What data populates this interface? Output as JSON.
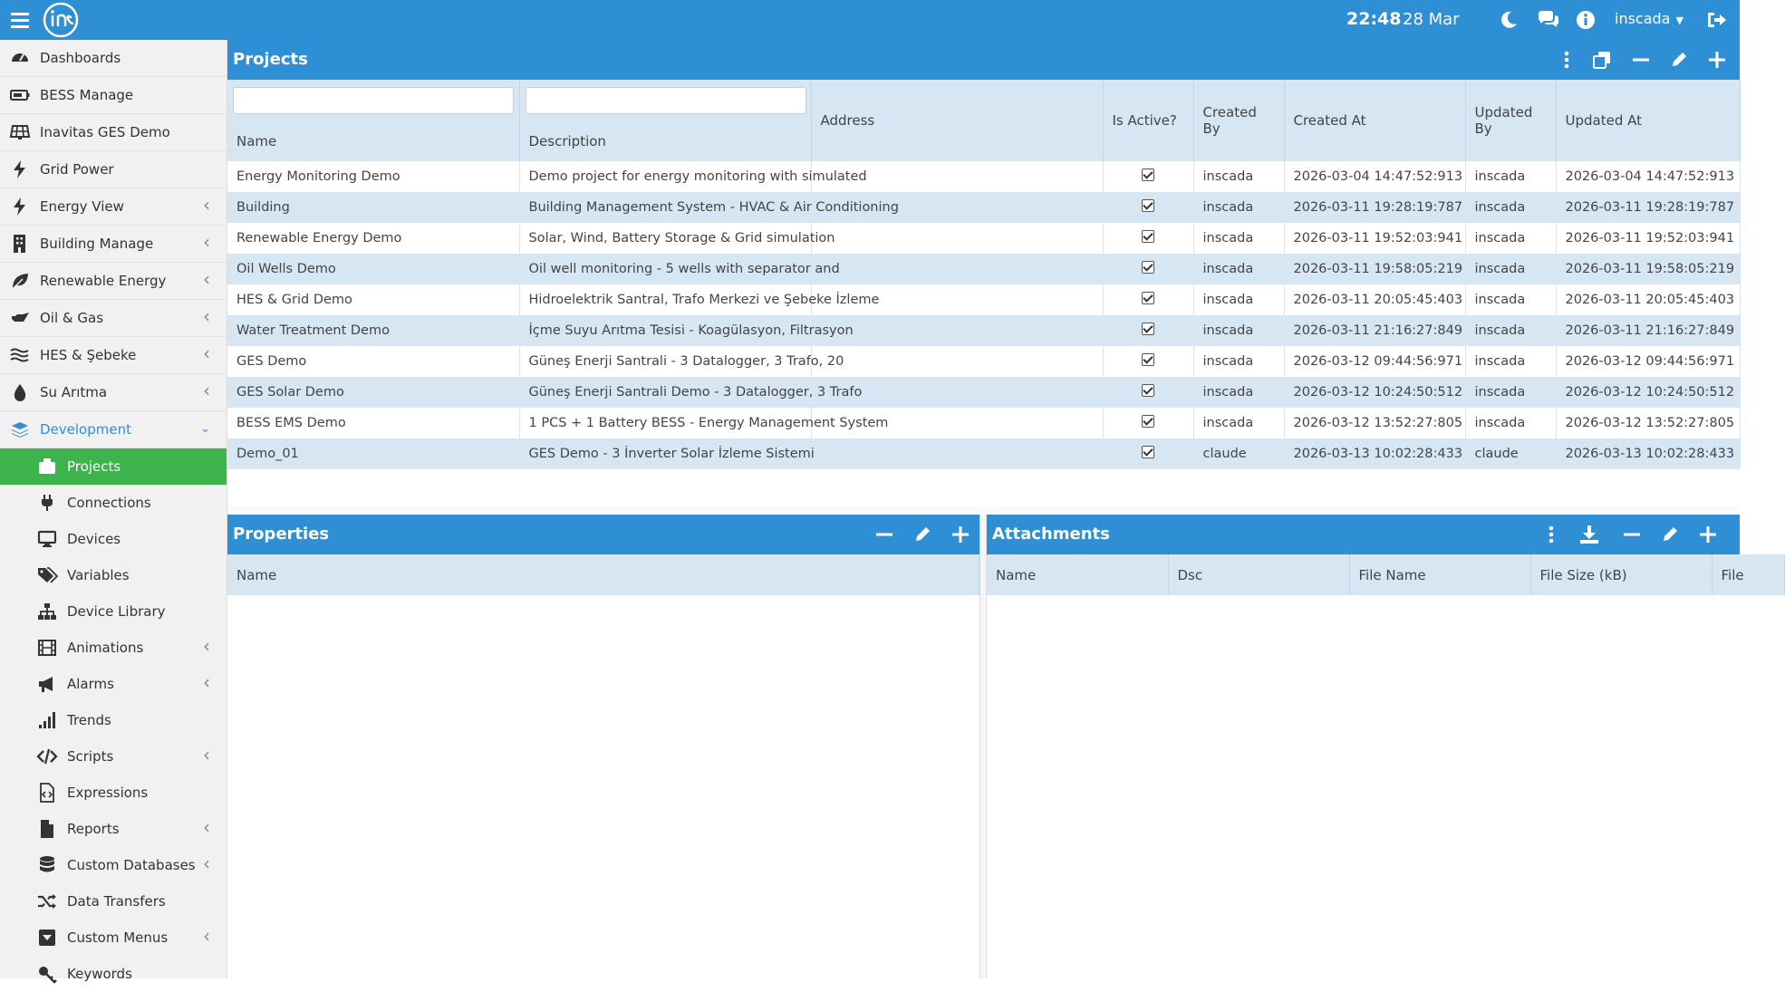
{
  "topbar": {
    "time": "22:48",
    "date": "28 Mar",
    "user": "inscada"
  },
  "sidebar": {
    "items": [
      {
        "label": "Dashboards",
        "icon": "dashboard-icon",
        "chevron": false
      },
      {
        "label": "BESS Manage",
        "icon": "battery-icon",
        "chevron": false
      },
      {
        "label": "Inavitas GES Demo",
        "icon": "solar-panel-icon",
        "chevron": false
      },
      {
        "label": "Grid Power",
        "icon": "bolt-icon",
        "chevron": false
      },
      {
        "label": "Energy View",
        "icon": "bolt-icon",
        "chevron": true
      },
      {
        "label": "Building Manage",
        "icon": "building-icon",
        "chevron": true
      },
      {
        "label": "Renewable Energy",
        "icon": "leaf-icon",
        "chevron": true
      },
      {
        "label": "Oil & Gas",
        "icon": "oil-can-icon",
        "chevron": true
      },
      {
        "label": "HES & Şebeke",
        "icon": "water-waves-icon",
        "chevron": true
      },
      {
        "label": "Su Arıtma",
        "icon": "droplet-icon",
        "chevron": true
      }
    ],
    "development": {
      "label": "Development",
      "icon": "layers-icon"
    },
    "sub_items": [
      {
        "label": "Projects",
        "icon": "briefcase-icon",
        "chevron": false,
        "active": true
      },
      {
        "label": "Connections",
        "icon": "plug-icon",
        "chevron": false
      },
      {
        "label": "Devices",
        "icon": "monitor-icon",
        "chevron": false
      },
      {
        "label": "Variables",
        "icon": "tags-icon",
        "chevron": false
      },
      {
        "label": "Device Library",
        "icon": "sitemap-icon",
        "chevron": false
      },
      {
        "label": "Animations",
        "icon": "film-icon",
        "chevron": true
      },
      {
        "label": "Alarms",
        "icon": "bullhorn-icon",
        "chevron": true
      },
      {
        "label": "Trends",
        "icon": "signal-bars-icon",
        "chevron": false
      },
      {
        "label": "Scripts",
        "icon": "code-icon",
        "chevron": true
      },
      {
        "label": "Expressions",
        "icon": "file-code-icon",
        "chevron": false
      },
      {
        "label": "Reports",
        "icon": "file-icon",
        "chevron": true
      },
      {
        "label": "Custom Databases",
        "icon": "database-icon",
        "chevron": true
      },
      {
        "label": "Data Transfers",
        "icon": "shuffle-icon",
        "chevron": false
      },
      {
        "label": "Custom Menus",
        "icon": "caret-square-icon",
        "chevron": true
      },
      {
        "label": "Keywords",
        "icon": "key-icon",
        "chevron": false
      }
    ]
  },
  "projects": {
    "title": "Projects",
    "columns": [
      "Name",
      "Description",
      "Address",
      "Is Active?",
      "Created By",
      "Created At",
      "Updated By",
      "Updated At"
    ],
    "rows": [
      {
        "name": "Energy Monitoring Demo",
        "description": "Demo project for energy monitoring with simulated",
        "address": "",
        "active": true,
        "created_by": "inscada",
        "created_at": "2026-03-04 14:47:52:913",
        "updated_by": "inscada",
        "updated_at": "2026-03-04 14:47:52:913"
      },
      {
        "name": "Building",
        "description": "Building Management System - HVAC & Air Conditioning",
        "address": "",
        "active": true,
        "created_by": "inscada",
        "created_at": "2026-03-11 19:28:19:787",
        "updated_by": "inscada",
        "updated_at": "2026-03-11 19:28:19:787"
      },
      {
        "name": "Renewable Energy Demo",
        "description": "Solar, Wind, Battery Storage & Grid simulation",
        "address": "",
        "active": true,
        "created_by": "inscada",
        "created_at": "2026-03-11 19:52:03:941",
        "updated_by": "inscada",
        "updated_at": "2026-03-11 19:52:03:941"
      },
      {
        "name": "Oil Wells Demo",
        "description": "Oil well monitoring - 5 wells with separator and",
        "address": "",
        "active": true,
        "created_by": "inscada",
        "created_at": "2026-03-11 19:58:05:219",
        "updated_by": "inscada",
        "updated_at": "2026-03-11 19:58:05:219"
      },
      {
        "name": "HES & Grid Demo",
        "description": "Hidroelektrik Santral, Trafo Merkezi ve Şebeke İzleme",
        "address": "",
        "active": true,
        "created_by": "inscada",
        "created_at": "2026-03-11 20:05:45:403",
        "updated_by": "inscada",
        "updated_at": "2026-03-11 20:05:45:403"
      },
      {
        "name": "Water Treatment Demo",
        "description": "İçme Suyu Arıtma Tesisi - Koagülasyon, Filtrasyon",
        "address": "",
        "active": true,
        "created_by": "inscada",
        "created_at": "2026-03-11 21:16:27:849",
        "updated_by": "inscada",
        "updated_at": "2026-03-11 21:16:27:849"
      },
      {
        "name": "GES Demo",
        "description": "Güneş Enerji Santrali - 3 Datalogger, 3 Trafo, 20",
        "address": "",
        "active": true,
        "created_by": "inscada",
        "created_at": "2026-03-12 09:44:56:971",
        "updated_by": "inscada",
        "updated_at": "2026-03-12 09:44:56:971"
      },
      {
        "name": "GES Solar Demo",
        "description": "Güneş Enerji Santrali Demo - 3 Datalogger, 3 Trafo",
        "address": "",
        "active": true,
        "created_by": "inscada",
        "created_at": "2026-03-12 10:24:50:512",
        "updated_by": "inscada",
        "updated_at": "2026-03-12 10:24:50:512"
      },
      {
        "name": "BESS EMS Demo",
        "description": "1 PCS + 1 Battery BESS - Energy Management System",
        "address": "",
        "active": true,
        "created_by": "inscada",
        "created_at": "2026-03-12 13:52:27:805",
        "updated_by": "inscada",
        "updated_at": "2026-03-12 13:52:27:805"
      },
      {
        "name": "Demo_01",
        "description": "GES Demo - 3 İnverter Solar İzleme Sistemi",
        "address": "",
        "active": true,
        "created_by": "claude",
        "created_at": "2026-03-13 10:02:28:433",
        "updated_by": "claude",
        "updated_at": "2026-03-13 10:02:28:433"
      }
    ]
  },
  "properties": {
    "title": "Properties",
    "columns": [
      "Name"
    ]
  },
  "attachments": {
    "title": "Attachments",
    "columns": [
      "Name",
      "Dsc",
      "File Name",
      "File Size (kB)",
      "File"
    ]
  },
  "colors": {
    "header_blue": "#2f8fd5",
    "active_green": "#3cb44b",
    "row_alt": "#d6e6f2"
  }
}
